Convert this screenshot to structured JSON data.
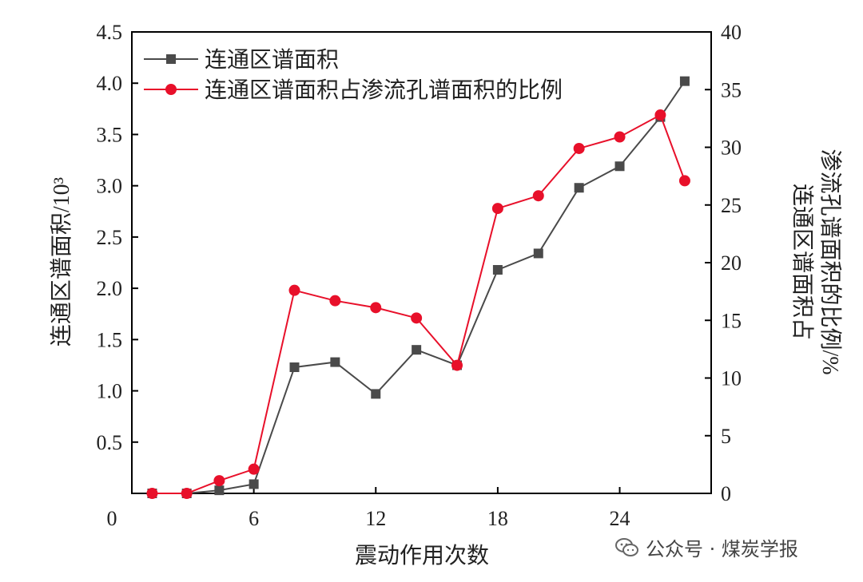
{
  "chart_data": {
    "type": "line",
    "x": [
      1,
      2.7,
      4.3,
      6,
      8,
      10,
      12,
      14,
      16,
      18,
      20,
      22,
      24,
      26,
      27.2
    ],
    "xlabel": "震动作用次数",
    "xticks": [
      "0",
      "6",
      "12",
      "18",
      "24"
    ],
    "xlim": [
      0,
      28.5
    ],
    "ylabel_left": "连通区谱面积/10³",
    "ylim_left": [
      0,
      4.5
    ],
    "yticks_left": [
      "0.5",
      "1.0",
      "1.5",
      "2.0",
      "2.5",
      "3.0",
      "3.5",
      "4.0",
      "4.5"
    ],
    "ylabel_right_line1": "连通区谱面积占",
    "ylabel_right_line2": "渗流孔谱面积的比例/%",
    "ylim_right": [
      0,
      40
    ],
    "yticks_right": [
      "0",
      "5",
      "10",
      "15",
      "20",
      "25",
      "30",
      "35",
      "40"
    ],
    "grid": false,
    "legend_position": "top-left",
    "series": [
      {
        "name": "连通区谱面积",
        "axis": "left",
        "color": "#4a4a4a",
        "marker": "square",
        "values": [
          0,
          0,
          0.03,
          0.09,
          1.23,
          1.28,
          0.97,
          1.4,
          1.25,
          2.18,
          2.34,
          2.98,
          3.19,
          3.67,
          4.02
        ]
      },
      {
        "name": "连通区谱面积占渗流孔谱面积的比例",
        "axis": "right",
        "color": "#e8102a",
        "marker": "circle",
        "values": [
          0,
          0,
          1.1,
          2.1,
          17.6,
          16.7,
          16.1,
          15.2,
          11.1,
          24.7,
          25.8,
          29.9,
          30.9,
          32.8,
          27.1
        ]
      }
    ]
  },
  "watermark": {
    "text": "公众号 · 煤炭学报",
    "icon": "wechat-icon"
  }
}
